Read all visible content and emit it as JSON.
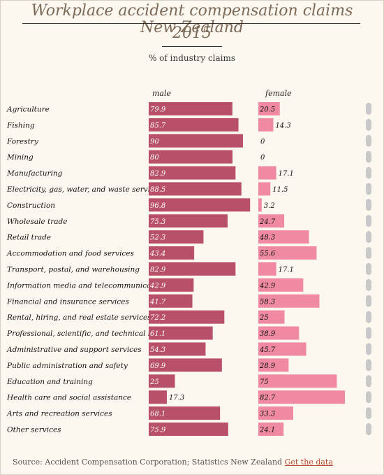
{
  "header": {
    "title_line1": "Workplace accident compensation claims New Zealand",
    "title_line2": "2015",
    "subtitle": "% of industry claims",
    "male_label": "male",
    "female_label": "female"
  },
  "footer": {
    "source": "Source: Accident Compensation Corporation; Statistics New Zealand",
    "link": "Get the data"
  },
  "chart_data": {
    "type": "bar",
    "orientation": "horizontal",
    "title": "Workplace accident compensation claims New Zealand 2015",
    "subtitle": "% of industry claims",
    "categories": [
      "Agriculture",
      "Fishing",
      "Forestry",
      "Mining",
      "Manufacturing",
      "Electricity, gas, water, and waste services",
      "Construction",
      "Wholesale trade",
      "Retail trade",
      "Accommodation and food services",
      "Transport, postal, and warehousing",
      "Information media and telecommunications",
      "Financial and insurance services",
      "Rental, hiring, and real estate services",
      "Professional, scientific, and technical services",
      "Administrative and support services",
      "Public administration and safety",
      "Education and training",
      "Health care and social assistance",
      "Arts and recreation services",
      "Other services"
    ],
    "series": [
      {
        "name": "male",
        "color": "#b85068",
        "values": [
          79.9,
          85.7,
          90,
          80,
          82.9,
          88.5,
          96.8,
          75.3,
          52.3,
          43.4,
          82.9,
          42.9,
          41.7,
          72.2,
          61.1,
          54.3,
          69.9,
          25,
          17.3,
          68.1,
          75.9
        ],
        "labels": [
          "79.9",
          "85.7",
          "90",
          "80",
          "82.9",
          "88.5",
          "96.8",
          "75.3",
          "52.3",
          "43.4",
          "82.9",
          "42.9",
          "41.7",
          "72.2",
          "61.1",
          "54.3",
          "69.9",
          "25",
          "17.3",
          "68.1",
          "75.9"
        ]
      },
      {
        "name": "female",
        "color": "#f08aa0",
        "values": [
          20.5,
          14.3,
          0,
          0,
          17.1,
          11.5,
          3.2,
          24.7,
          48.3,
          55.6,
          17.1,
          42.9,
          58.3,
          25,
          38.9,
          45.7,
          28.9,
          75,
          82.7,
          33.3,
          24.1
        ],
        "labels": [
          "20.5",
          "14.3",
          "0",
          "0",
          "17.1",
          "11.5",
          "3.2",
          "24.7",
          "48.3",
          "55.6",
          "17.1",
          "42.9",
          "58.3",
          "25",
          "38.9",
          "45.7",
          "28.9",
          "75",
          "82.7",
          "33.3",
          "24.1"
        ]
      }
    ],
    "xlim": [
      0,
      100
    ]
  }
}
